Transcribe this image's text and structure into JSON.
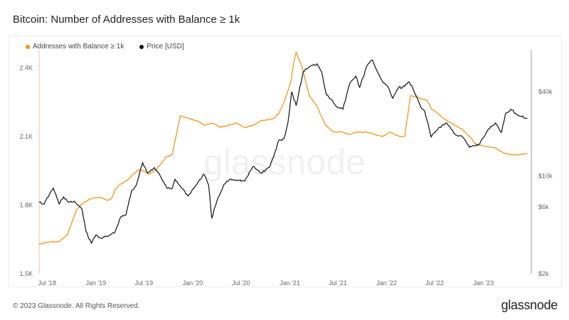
{
  "header": {
    "title": "Bitcoin: Number of Addresses with Balance ≥ 1k"
  },
  "footer": {
    "copyright": "© 2023 Glassnode. All Rights Reserved.",
    "brand": "glassnode"
  },
  "watermark": "glassnode",
  "chart_data": {
    "type": "line",
    "title": "Bitcoin: Number of Addresses with Balance ≥ 1k",
    "legend_position": "top-left",
    "grid": false,
    "x_ticks": [
      "Jul '18",
      "Jan '19",
      "Jul '19",
      "Jan '20",
      "Jul '20",
      "Jan '21",
      "Jul '21",
      "Jan '22",
      "Jul '22",
      "Jan '23"
    ],
    "y_left": {
      "ticks": [
        "1.5K",
        "1.8K",
        "2.1K",
        "2.4K"
      ],
      "tick_values": [
        1500,
        1800,
        2100,
        2400
      ],
      "range": [
        1500,
        2480
      ]
    },
    "y_right": {
      "scale": "log",
      "ticks": [
        "$2k",
        "$6k",
        "$10k",
        "$40k"
      ],
      "tick_values": [
        2000,
        6000,
        10000,
        40000
      ],
      "range": [
        2000,
        80000
      ]
    },
    "series": [
      {
        "name": "Addresses with Balance ≥ 1k",
        "color": "#f7931a",
        "axis": "left",
        "x": [
          "2018-06-01",
          "2018-07-15",
          "2018-08-15",
          "2018-09-15",
          "2018-10-01",
          "2018-10-20",
          "2018-11-15",
          "2018-12-15",
          "2019-01-15",
          "2019-02-15",
          "2019-03-01",
          "2019-03-15",
          "2019-04-01",
          "2019-05-01",
          "2019-05-20",
          "2019-06-10",
          "2019-07-01",
          "2019-07-20",
          "2019-08-15",
          "2019-09-10",
          "2019-09-20",
          "2019-10-15",
          "2019-11-15",
          "2019-12-15",
          "2020-01-15",
          "2020-02-15",
          "2020-03-15",
          "2020-04-15",
          "2020-05-15",
          "2020-06-15",
          "2020-07-15",
          "2020-08-15",
          "2020-09-15",
          "2020-10-15",
          "2020-11-01",
          "2020-11-20",
          "2020-12-10",
          "2020-12-25",
          "2021-01-05",
          "2021-01-15",
          "2021-01-25",
          "2021-02-15",
          "2021-03-15",
          "2021-04-15",
          "2021-05-15",
          "2021-06-15",
          "2021-07-15",
          "2021-08-15",
          "2021-09-15",
          "2021-10-15",
          "2021-11-15",
          "2021-12-15",
          "2022-01-15",
          "2022-02-01",
          "2022-02-20",
          "2022-03-10",
          "2022-04-01",
          "2022-05-01",
          "2022-06-01",
          "2022-06-20",
          "2022-07-15",
          "2022-08-15",
          "2022-09-15",
          "2022-10-15",
          "2022-11-10",
          "2022-12-01",
          "2023-01-01",
          "2023-02-15",
          "2023-03-15",
          "2023-04-15",
          "2023-05-15",
          "2023-06-15"
        ],
        "y": [
          1630,
          1640,
          1640,
          1670,
          1720,
          1780,
          1810,
          1830,
          1835,
          1820,
          1830,
          1870,
          1890,
          1910,
          1935,
          1955,
          1950,
          1935,
          1955,
          1990,
          2010,
          2020,
          2190,
          2180,
          2170,
          2150,
          2160,
          2140,
          2150,
          2160,
          2140,
          2150,
          2170,
          2175,
          2180,
          2200,
          2250,
          2300,
          2340,
          2420,
          2470,
          2410,
          2280,
          2230,
          2150,
          2120,
          2120,
          2110,
          2120,
          2120,
          2110,
          2100,
          2120,
          2110,
          2100,
          2100,
          2280,
          2270,
          2260,
          2220,
          2200,
          2170,
          2150,
          2130,
          2100,
          2070,
          2060,
          2050,
          2030,
          2020,
          2020,
          2025
        ]
      },
      {
        "name": "Price [USD]",
        "color": "#111111",
        "axis": "right",
        "x": [
          "2018-06-01",
          "2018-06-20",
          "2018-07-10",
          "2018-07-25",
          "2018-08-15",
          "2018-09-01",
          "2018-09-20",
          "2018-10-15",
          "2018-11-10",
          "2018-11-25",
          "2018-12-15",
          "2019-01-01",
          "2019-01-20",
          "2019-02-15",
          "2019-03-15",
          "2019-04-05",
          "2019-04-25",
          "2019-05-15",
          "2019-06-01",
          "2019-06-26",
          "2019-07-15",
          "2019-08-10",
          "2019-09-01",
          "2019-09-25",
          "2019-10-15",
          "2019-10-26",
          "2019-11-15",
          "2019-12-15",
          "2020-01-15",
          "2020-02-12",
          "2020-03-01",
          "2020-03-13",
          "2020-04-01",
          "2020-04-30",
          "2020-05-20",
          "2020-06-15",
          "2020-07-15",
          "2020-08-15",
          "2020-09-15",
          "2020-10-15",
          "2020-11-01",
          "2020-11-20",
          "2020-12-10",
          "2020-12-25",
          "2021-01-08",
          "2021-01-25",
          "2021-02-21",
          "2021-03-13",
          "2021-04-14",
          "2021-05-01",
          "2021-05-19",
          "2021-06-10",
          "2021-06-22",
          "2021-07-20",
          "2021-08-15",
          "2021-09-07",
          "2021-09-21",
          "2021-10-20",
          "2021-11-09",
          "2021-11-25",
          "2021-12-15",
          "2022-01-10",
          "2022-01-24",
          "2022-02-15",
          "2022-03-01",
          "2022-03-28",
          "2022-04-15",
          "2022-05-10",
          "2022-05-25",
          "2022-06-18",
          "2022-07-15",
          "2022-08-15",
          "2022-09-15",
          "2022-10-15",
          "2022-11-09",
          "2022-11-25",
          "2022-12-15",
          "2023-01-15",
          "2023-02-15",
          "2023-03-10",
          "2023-03-25",
          "2023-04-14",
          "2023-05-15",
          "2023-06-15"
        ],
        "y": [
          6500,
          6300,
          7400,
          8200,
          6300,
          7100,
          6500,
          6500,
          5800,
          4000,
          3300,
          3800,
          3600,
          3700,
          4000,
          5100,
          5300,
          7800,
          8500,
          12500,
          10500,
          11500,
          10000,
          8200,
          8100,
          9500,
          8500,
          7200,
          8700,
          10300,
          8600,
          5000,
          6600,
          8800,
          9500,
          9400,
          9200,
          11700,
          10500,
          11500,
          13700,
          18000,
          18500,
          24000,
          40000,
          32000,
          56000,
          60000,
          63500,
          56000,
          38000,
          35000,
          32000,
          30000,
          46000,
          52000,
          43000,
          62000,
          67500,
          57000,
          48000,
          42000,
          36000,
          43000,
          43000,
          47000,
          40000,
          31000,
          29000,
          19000,
          22000,
          24000,
          20000,
          19000,
          16000,
          16500,
          16800,
          21000,
          24000,
          20500,
          28000,
          30000,
          27000,
          26000
        ]
      }
    ]
  }
}
